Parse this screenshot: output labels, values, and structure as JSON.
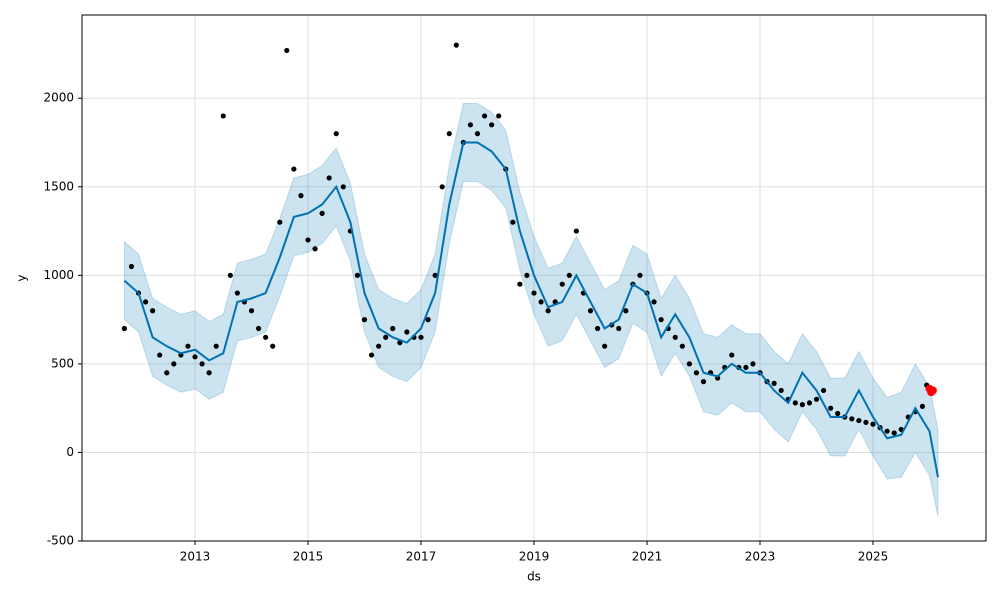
{
  "chart_data": {
    "type": "forecast",
    "xlabel": "ds",
    "ylabel": "y",
    "xlim": [
      2011,
      2027
    ],
    "ylim": [
      -500,
      2470
    ],
    "xticks": [
      2013,
      2015,
      2017,
      2019,
      2021,
      2023,
      2025
    ],
    "yticks": [
      -500,
      0,
      500,
      1000,
      1500,
      2000
    ],
    "grid": true,
    "observed": {
      "color": "#000000",
      "x": [
        2011.75,
        2011.875,
        2012.0,
        2012.125,
        2012.25,
        2012.375,
        2012.5,
        2012.625,
        2012.75,
        2012.875,
        2013.0,
        2013.125,
        2013.25,
        2013.375,
        2013.5,
        2013.625,
        2013.75,
        2013.875,
        2014.0,
        2014.125,
        2014.25,
        2014.375,
        2014.5,
        2014.625,
        2014.75,
        2014.875,
        2015.0,
        2015.125,
        2015.25,
        2015.375,
        2015.5,
        2015.625,
        2015.75,
        2015.875,
        2016.0,
        2016.125,
        2016.25,
        2016.375,
        2016.5,
        2016.625,
        2016.75,
        2016.875,
        2017.0,
        2017.125,
        2017.25,
        2017.375,
        2017.5,
        2017.625,
        2017.75,
        2017.875,
        2018.0,
        2018.125,
        2018.25,
        2018.375,
        2018.5,
        2018.625,
        2018.75,
        2018.875,
        2019.0,
        2019.125,
        2019.25,
        2019.375,
        2019.5,
        2019.625,
        2019.75,
        2019.875,
        2020.0,
        2020.125,
        2020.25,
        2020.375,
        2020.5,
        2020.625,
        2020.75,
        2020.875,
        2021.0,
        2021.125,
        2021.25,
        2021.375,
        2021.5,
        2021.625,
        2021.75,
        2021.875,
        2022.0,
        2022.125,
        2022.25,
        2022.375,
        2022.5,
        2022.625,
        2022.75,
        2022.875,
        2023.0,
        2023.125,
        2023.25,
        2023.375,
        2023.5,
        2023.625,
        2023.75,
        2023.875,
        2024.0,
        2024.125,
        2024.25,
        2024.375,
        2024.5,
        2024.625,
        2024.75,
        2024.875,
        2025.0,
        2025.125,
        2025.25,
        2025.375,
        2025.5,
        2025.625,
        2025.75,
        2025.875,
        2025.95
      ],
      "values": [
        700,
        1050,
        900,
        850,
        800,
        550,
        450,
        500,
        550,
        600,
        540,
        500,
        450,
        600,
        1900,
        1000,
        900,
        850,
        800,
        700,
        650,
        600,
        1300,
        2270,
        1600,
        1450,
        1200,
        1150,
        1350,
        1550,
        1800,
        1500,
        1250,
        1000,
        750,
        550,
        600,
        650,
        700,
        620,
        680,
        650,
        650,
        750,
        1000,
        1500,
        1800,
        2300,
        1750,
        1850,
        1800,
        1900,
        1850,
        1900,
        1600,
        1300,
        950,
        1000,
        900,
        850,
        800,
        850,
        950,
        1000,
        1250,
        900,
        800,
        700,
        600,
        720,
        700,
        800,
        950,
        1000,
        900,
        850,
        750,
        700,
        650,
        600,
        500,
        450,
        400,
        450,
        420,
        480,
        550,
        480,
        480,
        500,
        450,
        400,
        390,
        350,
        300,
        280,
        270,
        280,
        300,
        350,
        250,
        220,
        200,
        190,
        180,
        170,
        160,
        140,
        120,
        110,
        130,
        200,
        230,
        260,
        380
      ]
    },
    "forecast": {
      "color": "#0072B2",
      "band_color": "#0072B2",
      "x": [
        2011.75,
        2012.0,
        2012.25,
        2012.5,
        2012.75,
        2013.0,
        2013.25,
        2013.5,
        2013.75,
        2014.0,
        2014.25,
        2014.5,
        2014.75,
        2015.0,
        2015.25,
        2015.5,
        2015.75,
        2016.0,
        2016.25,
        2016.5,
        2016.75,
        2017.0,
        2017.25,
        2017.5,
        2017.75,
        2018.0,
        2018.25,
        2018.5,
        2018.75,
        2019.0,
        2019.25,
        2019.5,
        2019.75,
        2020.0,
        2020.25,
        2020.5,
        2020.75,
        2021.0,
        2021.25,
        2021.5,
        2021.75,
        2022.0,
        2022.25,
        2022.5,
        2022.75,
        2023.0,
        2023.25,
        2023.5,
        2023.75,
        2024.0,
        2024.25,
        2024.5,
        2024.75,
        2025.0,
        2025.25,
        2025.5,
        2025.75,
        2026.0,
        2026.15
      ],
      "values": [
        970,
        900,
        650,
        600,
        560,
        580,
        520,
        560,
        850,
        870,
        900,
        1100,
        1330,
        1350,
        1400,
        1500,
        1300,
        900,
        700,
        650,
        620,
        700,
        900,
        1400,
        1750,
        1750,
        1700,
        1600,
        1250,
        1000,
        820,
        850,
        1000,
        850,
        700,
        750,
        950,
        900,
        650,
        780,
        650,
        450,
        430,
        500,
        450,
        450,
        350,
        280,
        450,
        350,
        200,
        200,
        350,
        200,
        80,
        100,
        250,
        120,
        -140
      ],
      "lower": [
        750,
        680,
        430,
        380,
        340,
        360,
        300,
        340,
        630,
        650,
        680,
        880,
        1110,
        1130,
        1180,
        1280,
        1080,
        680,
        480,
        430,
        400,
        480,
        680,
        1180,
        1530,
        1530,
        1480,
        1380,
        1030,
        780,
        600,
        630,
        780,
        630,
        480,
        530,
        730,
        680,
        430,
        560,
        430,
        230,
        210,
        280,
        230,
        230,
        130,
        60,
        230,
        130,
        -20,
        -20,
        130,
        -20,
        -150,
        -140,
        0,
        -130,
        -360
      ],
      "upper": [
        1190,
        1120,
        870,
        820,
        780,
        800,
        740,
        780,
        1070,
        1090,
        1120,
        1320,
        1550,
        1570,
        1620,
        1720,
        1520,
        1120,
        920,
        870,
        840,
        920,
        1120,
        1620,
        1970,
        1970,
        1920,
        1820,
        1470,
        1220,
        1040,
        1070,
        1220,
        1070,
        920,
        970,
        1170,
        1120,
        870,
        1000,
        870,
        670,
        650,
        720,
        670,
        670,
        570,
        500,
        670,
        570,
        420,
        420,
        570,
        420,
        310,
        340,
        500,
        370,
        130
      ]
    },
    "highlight": {
      "color": "#ff0000",
      "x": [
        2026.0,
        2026.03,
        2026.06
      ],
      "values": [
        360,
        340,
        350
      ]
    }
  }
}
